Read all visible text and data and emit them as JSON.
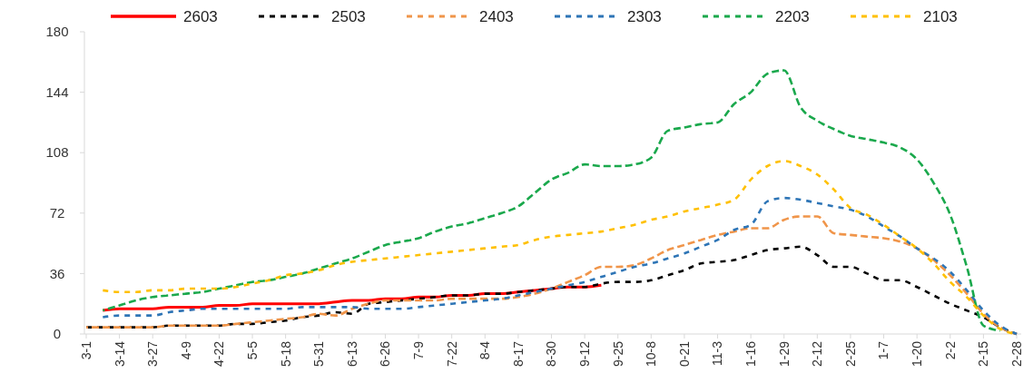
{
  "chart_data": {
    "type": "line",
    "categories": [
      "3-1",
      null,
      "3-14",
      null,
      "3-27",
      null,
      "4-9",
      null,
      "4-22",
      null,
      "5-5",
      null,
      "5-18",
      null,
      "5-31",
      null,
      "6-13",
      null,
      "6-26",
      null,
      "7-9",
      null,
      "7-22",
      null,
      "8-4",
      null,
      "8-17",
      null,
      "8-30",
      null,
      "9-12",
      null,
      "9-25",
      null,
      "10-8",
      null,
      "0-21",
      null,
      "11-3",
      null,
      "1-16",
      null,
      "1-29",
      null,
      "2-12",
      null,
      "2-25",
      null,
      "1-7",
      null,
      "1-20",
      null,
      "2-2",
      null,
      "2-15",
      null,
      "2-28"
    ],
    "ylim": [
      0,
      180
    ],
    "yticks": [
      0,
      36,
      72,
      108,
      144,
      180
    ],
    "legend": "top",
    "marker": "none",
    "series": [
      {
        "name": "2603",
        "color": "#ff0000",
        "line_style": "solid",
        "values": [
          null,
          14,
          15,
          15,
          15,
          16,
          16,
          16,
          17,
          17,
          18,
          18,
          18,
          18,
          18,
          19,
          20,
          20,
          21,
          21,
          22,
          22,
          23,
          23,
          24,
          24,
          25,
          26,
          27,
          28,
          28,
          29,
          null,
          null,
          null,
          null,
          null,
          null,
          null,
          null,
          null,
          null,
          null,
          null,
          null,
          null,
          null,
          null,
          null,
          null,
          null,
          null,
          null,
          null,
          null,
          null,
          null
        ]
      },
      {
        "name": "2503",
        "color": "#000000",
        "line_style": "dashed",
        "values": [
          4,
          4,
          4,
          4,
          4,
          5,
          5,
          5,
          5,
          6,
          6,
          7,
          8,
          10,
          11,
          13,
          12,
          18,
          19,
          20,
          21,
          22,
          23,
          23,
          24,
          24,
          25,
          26,
          27,
          28,
          28,
          30,
          31,
          31,
          32,
          35,
          38,
          42,
          43,
          44,
          47,
          50,
          51,
          52,
          47,
          40,
          40,
          36,
          32,
          32,
          28,
          23,
          18,
          14,
          10,
          4,
          0
        ]
      },
      {
        "name": "2403",
        "color": "#f0954a",
        "line_style": "dashed",
        "values": [
          4,
          4,
          4,
          4,
          4,
          5,
          5,
          5,
          5,
          6,
          7,
          8,
          9,
          10,
          12,
          11,
          15,
          18,
          20,
          20,
          20,
          20,
          21,
          21,
          21,
          21,
          22,
          24,
          27,
          31,
          35,
          40,
          40,
          41,
          45,
          50,
          53,
          56,
          59,
          61,
          63,
          63,
          68,
          70,
          70,
          60,
          59,
          58,
          57,
          55,
          51,
          44,
          35,
          24,
          12,
          4,
          0
        ]
      },
      {
        "name": "2303",
        "color": "#2e75b6",
        "line_style": "dashed",
        "values": [
          null,
          10,
          11,
          11,
          11,
          13,
          14,
          15,
          15,
          15,
          15,
          15,
          15,
          16,
          16,
          16,
          16,
          15,
          15,
          15,
          16,
          17,
          18,
          19,
          20,
          21,
          23,
          25,
          27,
          29,
          31,
          34,
          37,
          40,
          42,
          45,
          48,
          52,
          56,
          62,
          65,
          79,
          81,
          80,
          78,
          76,
          74,
          70,
          64,
          58,
          51,
          45,
          37,
          26,
          14,
          5,
          0
        ]
      },
      {
        "name": "2203",
        "color": "#1aa84c",
        "line_style": "dashed",
        "values": [
          null,
          14,
          17,
          20,
          22,
          23,
          24,
          25,
          27,
          29,
          31,
          32,
          34,
          36,
          39,
          42,
          45,
          49,
          53,
          55,
          57,
          61,
          64,
          66,
          69,
          72,
          76,
          84,
          92,
          96,
          101,
          100,
          100,
          101,
          105,
          121,
          123,
          125,
          126,
          137,
          144,
          155,
          157,
          135,
          127,
          122,
          118,
          116,
          114,
          111,
          104,
          90,
          71,
          40,
          5,
          2,
          null
        ]
      },
      {
        "name": "2103",
        "color": "#ffc000",
        "line_style": "dashed",
        "values": [
          null,
          26,
          25,
          25,
          26,
          26,
          27,
          27,
          27,
          28,
          30,
          32,
          35,
          36,
          38,
          41,
          43,
          44,
          45,
          46,
          47,
          48,
          49,
          50,
          51,
          52,
          53,
          56,
          58,
          59,
          60,
          61,
          63,
          65,
          68,
          70,
          73,
          75,
          77,
          80,
          92,
          100,
          103,
          100,
          95,
          86,
          75,
          71,
          65,
          58,
          51,
          42,
          31,
          22,
          11,
          3,
          0
        ]
      }
    ]
  }
}
